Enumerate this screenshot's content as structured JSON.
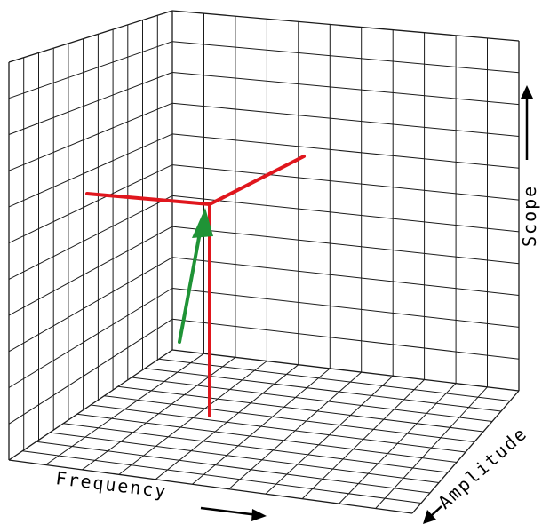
{
  "labels": {
    "frequency": "Frequency",
    "amplitude": "Amplitude",
    "scope": "Scope"
  },
  "grid_cells": {
    "back_wall": 11,
    "floor_depth": 12,
    "floor_width": 11
  },
  "colors": {
    "grid": "#1a1a1a",
    "red_axes": "#e0161d",
    "green_vector": "#1f9336",
    "arrow": "#000000"
  }
}
